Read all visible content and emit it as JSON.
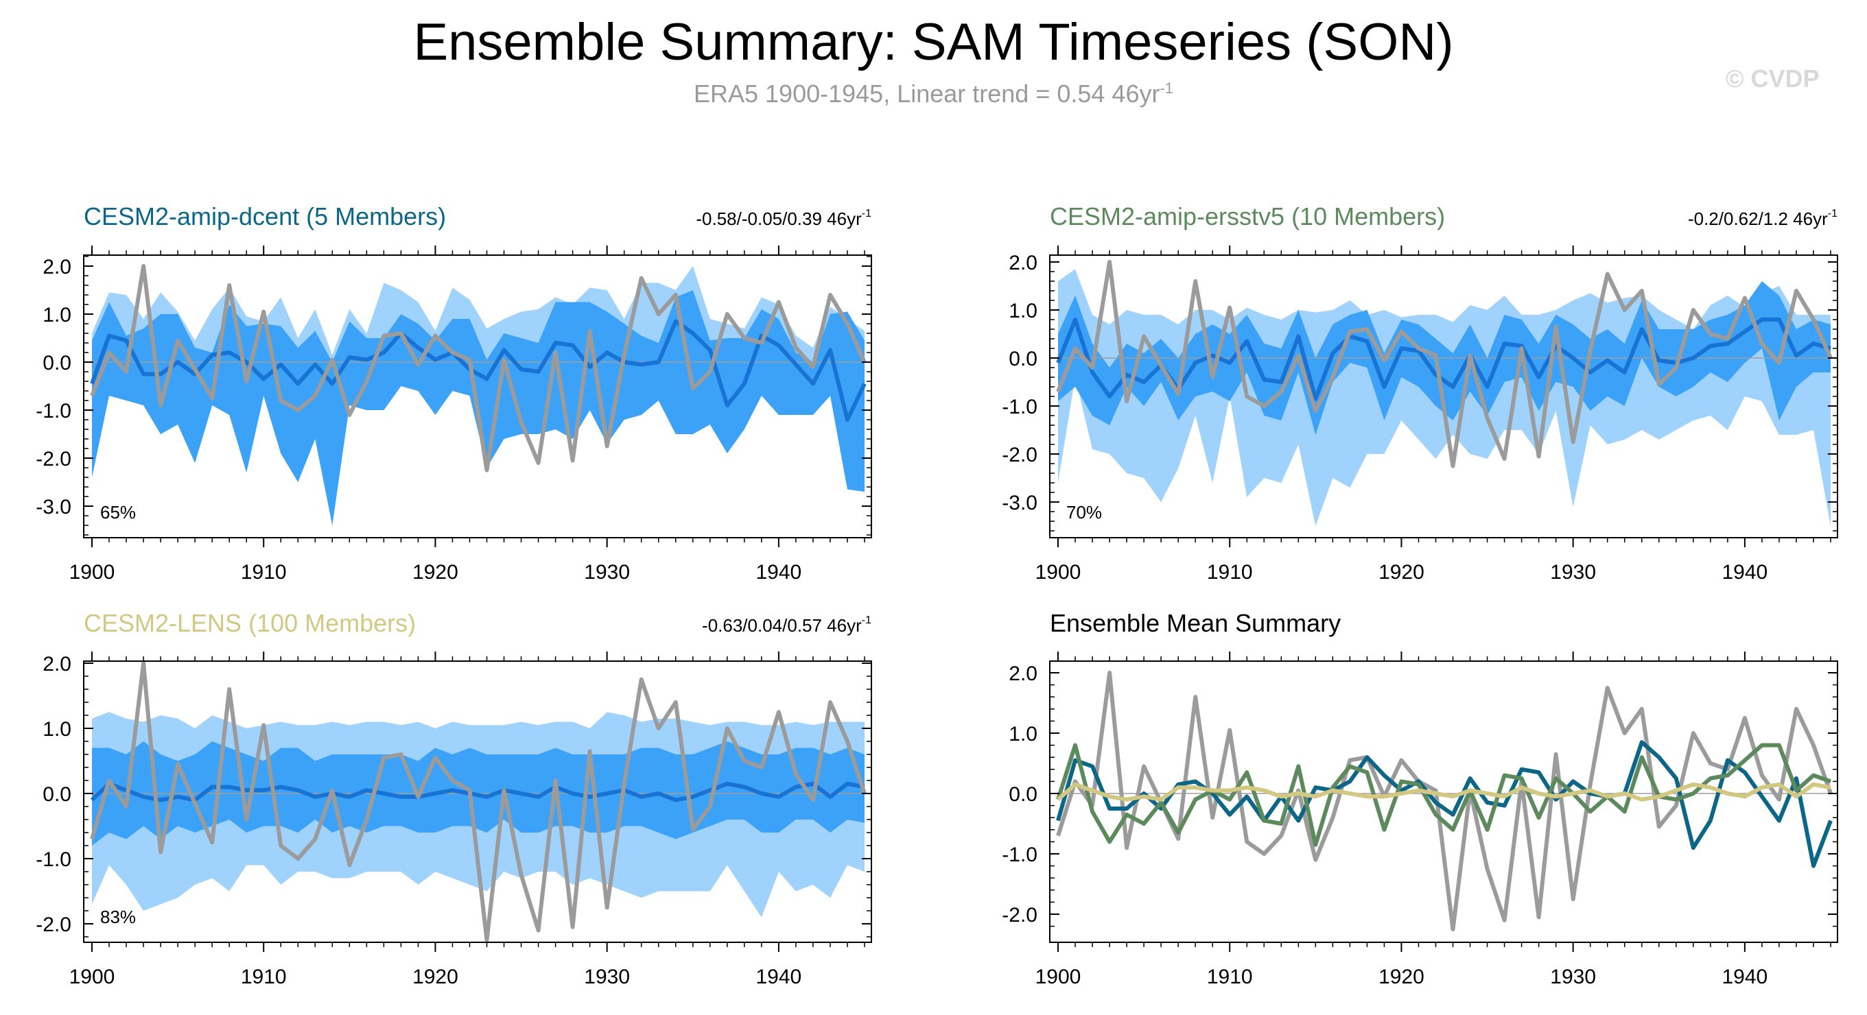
{
  "title": "Ensemble Summary: SAM Timeseries (SON)",
  "subtitle": {
    "main": "ERA5 1900-1945, Linear trend = 0.54 46yr",
    "sup": "-1"
  },
  "watermark": "© CVDP",
  "colors": {
    "spread_light": "#9fd2fc",
    "spread_dark": "#3ba2f8",
    "ens_mean": "#1873d4",
    "obs": "#9b9b9b",
    "zero_line": "#9e9e9e",
    "dcent": "#0b6688",
    "ersstv5": "#5c8a5c",
    "lens": "#d2c882"
  },
  "chart_data": [
    {
      "type": "line",
      "id": "dcent",
      "title": "CESM2-amip-dcent (5 Members)",
      "title_color": "#0b6688",
      "trend_text": "-0.58/-0.05/0.39 46yr",
      "trend_sup": "-1",
      "percent_label": "65%",
      "x_start": 1900,
      "xticks": [
        "1900",
        "1910",
        "1920",
        "1930",
        "1940"
      ],
      "yticks": [
        "2.0",
        "1.0",
        "0.0",
        "-1.0",
        "-2.0",
        "-3.0"
      ],
      "ytick_values": [
        2,
        1,
        0,
        -1,
        -2,
        -3
      ],
      "ylim": [
        -3.6,
        2.2
      ],
      "mean": [
        -0.45,
        0.55,
        0.45,
        -0.25,
        -0.25,
        0.0,
        -0.25,
        0.15,
        0.2,
        0.0,
        -0.35,
        -0.05,
        -0.45,
        -0.05,
        -0.45,
        0.1,
        0.05,
        0.2,
        0.6,
        0.3,
        0.05,
        0.2,
        -0.15,
        -0.35,
        0.25,
        -0.15,
        -0.2,
        0.4,
        0.35,
        -0.1,
        0.2,
        0.0,
        -0.05,
        0.0,
        0.85,
        0.6,
        0.25,
        -0.9,
        -0.45,
        0.55,
        0.35,
        -0.05,
        -0.45,
        0.25,
        -1.2,
        -0.45
      ],
      "low": [
        -2.4,
        -0.7,
        -0.8,
        -0.9,
        -1.5,
        -1.3,
        -2.1,
        -0.9,
        -1.1,
        -2.3,
        -0.7,
        -1.9,
        -2.5,
        -1.6,
        -3.4,
        -0.9,
        -1.0,
        -1.0,
        -0.5,
        -0.6,
        -1.1,
        -0.6,
        -0.7,
        -2.2,
        -1.6,
        -1.5,
        -1.5,
        -1.4,
        -1.6,
        -1.0,
        -1.7,
        -1.2,
        -1.1,
        -0.8,
        -1.5,
        -1.5,
        -1.3,
        -1.9,
        -1.4,
        -0.7,
        -1.1,
        -1.1,
        -1.1,
        -0.7,
        -2.65,
        -2.7
      ],
      "high": [
        0.45,
        1.25,
        0.55,
        0.7,
        1.0,
        1.0,
        0.3,
        0.2,
        1.2,
        0.75,
        0.8,
        0.75,
        0.3,
        0.65,
        0.0,
        0.85,
        0.5,
        0.5,
        1.0,
        0.8,
        0.45,
        0.9,
        0.9,
        0.05,
        0.6,
        0.5,
        0.4,
        1.25,
        1.25,
        1.25,
        1.05,
        0.8,
        0.55,
        0.4,
        1.35,
        1.5,
        0.45,
        0.5,
        0.5,
        1.1,
        0.9,
        0.2,
        0.0,
        1.0,
        1.05,
        0.45
      ],
      "low_outer": [
        -2.4,
        -0.7,
        -0.8,
        -0.9,
        -1.5,
        -1.3,
        -2.1,
        -0.9,
        -1.1,
        -2.3,
        -0.7,
        -1.9,
        -2.5,
        -1.6,
        -3.4,
        -0.9,
        -1.0,
        -1.0,
        -0.5,
        -0.6,
        -1.1,
        -0.6,
        -0.7,
        -2.2,
        -1.6,
        -1.5,
        -1.5,
        -1.4,
        -1.6,
        -1.0,
        -1.7,
        -1.2,
        -1.1,
        -0.8,
        -1.5,
        -1.5,
        -1.3,
        -1.9,
        -1.4,
        -0.7,
        -1.1,
        -1.1,
        -1.1,
        -0.7,
        -2.65,
        -2.7
      ],
      "high_outer": [
        0.6,
        1.45,
        1.4,
        0.9,
        1.45,
        1.05,
        0.45,
        1.1,
        1.55,
        0.95,
        0.85,
        1.35,
        0.5,
        1.1,
        0.15,
        1.1,
        0.6,
        1.65,
        1.5,
        1.25,
        0.65,
        1.55,
        1.3,
        0.7,
        0.9,
        1.05,
        1.1,
        1.35,
        1.2,
        1.55,
        1.5,
        0.9,
        1.65,
        1.65,
        1.5,
        2.0,
        0.9,
        0.8,
        0.7,
        1.35,
        1.2,
        0.55,
        0.3,
        1.15,
        0.9,
        0.65
      ],
      "obs": [
        -0.7,
        0.2,
        -0.2,
        2.0,
        -0.9,
        0.45,
        -0.15,
        -0.75,
        1.6,
        -0.4,
        1.05,
        -0.8,
        -1.0,
        -0.7,
        0.05,
        -1.1,
        -0.4,
        0.55,
        0.6,
        -0.05,
        0.55,
        0.2,
        0.05,
        -2.25,
        0.05,
        -1.25,
        -2.1,
        0.2,
        -2.05,
        0.65,
        -1.75,
        0.15,
        1.75,
        1.0,
        1.4,
        -0.55,
        -0.2,
        1.0,
        0.5,
        0.4,
        1.25,
        0.3,
        -0.1,
        1.4,
        0.8,
        0.0
      ]
    },
    {
      "type": "line",
      "id": "ersstv5",
      "title": "CESM2-amip-ersstv5 (10 Members)",
      "title_color": "#5c8a5c",
      "trend_text": "-0.2/0.62/1.2 46yr",
      "trend_sup": "-1",
      "percent_label": "70%",
      "x_start": 1900,
      "xticks": [
        "1900",
        "1910",
        "1920",
        "1930",
        "1940"
      ],
      "yticks": [
        "2.0",
        "1.0",
        "0.0",
        "-1.0",
        "-2.0",
        "-3.0"
      ],
      "ytick_values": [
        2,
        1,
        0,
        -1,
        -2,
        -3
      ],
      "ylim": [
        -3.6,
        2.2
      ],
      "mean": [
        -0.1,
        0.8,
        -0.3,
        -0.8,
        -0.35,
        -0.5,
        -0.15,
        -0.65,
        -0.1,
        0.05,
        -0.1,
        0.35,
        -0.45,
        -0.5,
        0.45,
        -0.85,
        0.1,
        0.45,
        0.35,
        -0.6,
        0.2,
        0.15,
        -0.35,
        -0.6,
        0.05,
        -0.6,
        0.3,
        0.25,
        -0.4,
        0.25,
        0.0,
        -0.3,
        -0.05,
        -0.3,
        0.6,
        -0.05,
        -0.1,
        0.0,
        0.25,
        0.3,
        0.55,
        0.8,
        0.8,
        0.05,
        0.3,
        0.2
      ],
      "low": [
        -0.9,
        -0.6,
        -1.2,
        -1.4,
        -0.6,
        -1.0,
        -0.5,
        -1.3,
        -0.8,
        -0.7,
        -0.9,
        -0.3,
        -1.2,
        -1.3,
        -0.3,
        -1.6,
        -0.5,
        -0.1,
        -0.2,
        -1.3,
        -0.4,
        -0.6,
        -1.0,
        -1.3,
        -0.7,
        -1.2,
        -0.5,
        -0.4,
        -1.1,
        -0.5,
        -0.6,
        -1.1,
        -0.8,
        -1.0,
        0.0,
        -0.6,
        -0.8,
        -0.6,
        -0.3,
        -0.5,
        -0.1,
        0.2,
        -1.3,
        -0.6,
        -0.3,
        -0.3
      ],
      "high": [
        0.5,
        1.3,
        0.3,
        -0.2,
        0.3,
        0.1,
        0.4,
        0.0,
        0.5,
        0.7,
        0.5,
        0.9,
        0.3,
        0.2,
        1.0,
        0.0,
        0.7,
        0.9,
        1.0,
        0.1,
        0.8,
        0.7,
        0.4,
        0.1,
        0.7,
        0.0,
        0.9,
        0.8,
        0.3,
        0.9,
        0.7,
        0.4,
        0.6,
        0.3,
        1.2,
        0.6,
        0.6,
        0.6,
        0.8,
        0.9,
        1.1,
        1.6,
        1.3,
        0.6,
        0.8,
        0.7
      ],
      "low_outer": [
        -2.6,
        -0.4,
        -1.9,
        -2.0,
        -2.4,
        -2.5,
        -3.0,
        -2.3,
        -1.2,
        -2.6,
        -0.8,
        -2.9,
        -2.5,
        -2.6,
        -1.8,
        -3.5,
        -2.5,
        -2.7,
        -2.0,
        -2.0,
        -1.3,
        -1.7,
        -2.1,
        -1.6,
        -2.0,
        -2.1,
        -1.5,
        -1.5,
        -2.0,
        -1.1,
        -3.1,
        -1.4,
        -1.8,
        -1.7,
        -1.5,
        -1.7,
        -1.5,
        -1.3,
        -1.2,
        -1.5,
        -0.8,
        -0.9,
        -1.6,
        -1.6,
        -1.5,
        -3.5
      ],
      "high_outer": [
        1.6,
        1.85,
        0.9,
        0.7,
        1.0,
        0.9,
        0.9,
        0.7,
        1.0,
        1.0,
        0.8,
        1.05,
        0.9,
        0.8,
        1.0,
        0.95,
        1.0,
        1.2,
        0.9,
        1.0,
        0.85,
        0.9,
        0.9,
        0.75,
        1.1,
        1.0,
        1.3,
        0.9,
        0.9,
        1.0,
        1.2,
        1.35,
        1.15,
        1.25,
        1.3,
        1.0,
        0.8,
        0.6,
        1.1,
        1.3,
        1.05,
        1.35,
        1.5,
        0.9,
        0.9,
        0.9
      ],
      "obs": [
        -0.7,
        0.2,
        -0.2,
        2.0,
        -0.9,
        0.45,
        -0.15,
        -0.75,
        1.6,
        -0.4,
        1.05,
        -0.8,
        -1.0,
        -0.7,
        0.05,
        -1.1,
        -0.4,
        0.55,
        0.6,
        -0.05,
        0.55,
        0.2,
        0.05,
        -2.25,
        0.05,
        -1.25,
        -2.1,
        0.2,
        -2.05,
        0.65,
        -1.75,
        0.15,
        1.75,
        1.0,
        1.4,
        -0.55,
        -0.2,
        1.0,
        0.5,
        0.4,
        1.25,
        0.3,
        -0.1,
        1.4,
        0.8,
        0.0
      ]
    },
    {
      "type": "line",
      "id": "lens",
      "title": "CESM2-LENS (100 Members)",
      "title_color": "#d2c882",
      "trend_text": "-0.63/0.04/0.57 46yr",
      "trend_sup": "-1",
      "percent_label": "83%",
      "x_start": 1900,
      "xticks": [
        "1900",
        "1910",
        "1920",
        "1930",
        "1940"
      ],
      "yticks": [
        "2.0",
        "1.0",
        "0.0",
        "-1.0",
        "-2.0"
      ],
      "ytick_values": [
        2,
        1,
        0,
        -1,
        -2
      ],
      "ylim": [
        -2.3,
        2.1
      ],
      "mean": [
        -0.1,
        0.15,
        0.05,
        -0.05,
        -0.1,
        -0.05,
        -0.1,
        0.1,
        0.1,
        0.05,
        0.05,
        0.1,
        0.05,
        -0.05,
        0.0,
        -0.05,
        0.05,
        0.0,
        -0.05,
        -0.05,
        0.0,
        0.05,
        0.0,
        -0.05,
        0.05,
        0.0,
        -0.05,
        0.1,
        0.0,
        -0.05,
        0.0,
        0.05,
        -0.05,
        0.0,
        -0.1,
        -0.05,
        0.05,
        0.15,
        0.1,
        0.0,
        -0.05,
        0.1,
        0.15,
        -0.05,
        0.15,
        0.1
      ],
      "low": [
        -0.8,
        -0.6,
        -0.7,
        -0.5,
        -0.7,
        -0.5,
        -0.6,
        -0.5,
        -0.4,
        -0.6,
        -0.5,
        -0.5,
        -0.6,
        -0.4,
        -0.6,
        -0.5,
        -0.6,
        -0.5,
        -0.5,
        -0.6,
        -0.6,
        -0.5,
        -0.5,
        -0.6,
        -0.4,
        -0.6,
        -0.6,
        -0.5,
        -0.5,
        -0.6,
        -0.6,
        -0.5,
        -0.5,
        -0.6,
        -0.7,
        -0.6,
        -0.5,
        -0.4,
        -0.4,
        -0.6,
        -0.6,
        -0.4,
        -0.4,
        -0.6,
        -0.4,
        -0.45
      ],
      "high": [
        0.7,
        0.7,
        0.6,
        0.8,
        0.6,
        0.5,
        0.6,
        0.8,
        0.7,
        0.6,
        0.5,
        0.7,
        0.7,
        0.5,
        0.6,
        0.6,
        0.6,
        0.6,
        0.6,
        0.5,
        0.7,
        0.6,
        0.7,
        0.6,
        0.6,
        0.6,
        0.6,
        0.7,
        0.6,
        0.6,
        0.6,
        0.6,
        0.7,
        0.7,
        0.6,
        0.6,
        0.7,
        0.8,
        0.7,
        0.6,
        0.6,
        0.7,
        0.7,
        0.6,
        0.7,
        0.6
      ],
      "low_outer": [
        -1.7,
        -1.1,
        -1.4,
        -1.8,
        -1.7,
        -1.6,
        -1.4,
        -1.3,
        -1.5,
        -1.1,
        -1.1,
        -1.4,
        -1.2,
        -1.2,
        -1.3,
        -1.3,
        -1.2,
        -1.2,
        -1.2,
        -1.4,
        -1.2,
        -1.3,
        -1.4,
        -1.5,
        -1.2,
        -1.3,
        -1.2,
        -1.2,
        -1.4,
        -1.3,
        -1.4,
        -1.5,
        -1.6,
        -1.5,
        -1.5,
        -1.5,
        -1.5,
        -1.1,
        -1.5,
        -1.9,
        -1.2,
        -1.5,
        -1.4,
        -1.6,
        -1.1,
        -1.2
      ],
      "high_outer": [
        1.15,
        1.25,
        1.15,
        1.1,
        1.2,
        1.15,
        1.0,
        1.2,
        1.1,
        1.0,
        1.05,
        1.1,
        1.05,
        1.05,
        1.1,
        1.05,
        1.1,
        1.1,
        1.05,
        1.1,
        1.0,
        1.1,
        1.05,
        1.05,
        1.05,
        1.1,
        1.05,
        1.1,
        1.1,
        1.0,
        1.25,
        1.2,
        1.1,
        1.15,
        1.15,
        1.1,
        1.05,
        1.1,
        1.1,
        1.05,
        1.05,
        1.1,
        1.05,
        1.1,
        1.1,
        1.1
      ],
      "obs": [
        -0.7,
        0.2,
        -0.2,
        2.0,
        -0.9,
        0.45,
        -0.15,
        -0.75,
        1.6,
        -0.4,
        1.05,
        -0.8,
        -1.0,
        -0.7,
        0.05,
        -1.1,
        -0.4,
        0.55,
        0.6,
        -0.05,
        0.55,
        0.2,
        0.05,
        -2.25,
        0.05,
        -1.25,
        -2.1,
        0.2,
        -2.05,
        0.65,
        -1.75,
        0.15,
        1.75,
        1.0,
        1.4,
        -0.55,
        -0.2,
        1.0,
        0.5,
        0.4,
        1.25,
        0.3,
        -0.1,
        1.4,
        0.8,
        0.0
      ]
    },
    {
      "type": "line",
      "id": "summary",
      "title": "Ensemble Mean Summary",
      "title_color": "#000000",
      "x_start": 1900,
      "xticks": [
        "1900",
        "1910",
        "1920",
        "1930",
        "1940"
      ],
      "yticks": [
        "2.0",
        "1.0",
        "0.0",
        "-1.0",
        "-2.0"
      ],
      "ytick_values": [
        2,
        1,
        0,
        -1,
        -2
      ],
      "ylim": [
        -2.3,
        2.1
      ],
      "series": [
        {
          "name": "ERA5",
          "color": "#9b9b9b",
          "values": [
            -0.7,
            0.2,
            -0.2,
            2.0,
            -0.9,
            0.45,
            -0.15,
            -0.75,
            1.6,
            -0.4,
            1.05,
            -0.8,
            -1.0,
            -0.7,
            0.05,
            -1.1,
            -0.4,
            0.55,
            0.6,
            -0.05,
            0.55,
            0.2,
            0.05,
            -2.25,
            0.05,
            -1.25,
            -2.1,
            0.2,
            -2.05,
            0.65,
            -1.75,
            0.15,
            1.75,
            1.0,
            1.4,
            -0.55,
            -0.2,
            1.0,
            0.5,
            0.4,
            1.25,
            0.3,
            -0.1,
            1.4,
            0.8,
            0.0
          ]
        },
        {
          "name": "CESM2-amip-dcent",
          "color": "#0b6688",
          "values": [
            -0.45,
            0.55,
            0.45,
            -0.25,
            -0.25,
            0.0,
            -0.25,
            0.15,
            0.2,
            0.0,
            -0.35,
            -0.05,
            -0.45,
            -0.05,
            -0.45,
            0.1,
            0.05,
            0.2,
            0.6,
            0.3,
            0.05,
            0.2,
            -0.15,
            -0.35,
            0.25,
            -0.15,
            -0.2,
            0.4,
            0.35,
            -0.1,
            0.2,
            0.0,
            -0.05,
            0.0,
            0.85,
            0.6,
            0.25,
            -0.9,
            -0.45,
            0.55,
            0.35,
            -0.05,
            -0.45,
            0.25,
            -1.2,
            -0.45
          ]
        },
        {
          "name": "CESM2-amip-ersstv5",
          "color": "#5c8a5c",
          "values": [
            -0.1,
            0.8,
            -0.3,
            -0.8,
            -0.35,
            -0.5,
            -0.15,
            -0.65,
            -0.1,
            0.05,
            -0.1,
            0.35,
            -0.45,
            -0.5,
            0.45,
            -0.85,
            0.1,
            0.45,
            0.35,
            -0.6,
            0.2,
            0.15,
            -0.35,
            -0.6,
            0.05,
            -0.6,
            0.3,
            0.25,
            -0.4,
            0.25,
            0.0,
            -0.3,
            -0.05,
            -0.3,
            0.6,
            -0.05,
            -0.1,
            0.0,
            0.25,
            0.3,
            0.55,
            0.8,
            0.8,
            0.05,
            0.3,
            0.2
          ]
        },
        {
          "name": "CESM2-LENS",
          "color": "#d2c882",
          "values": [
            -0.1,
            0.15,
            0.05,
            -0.05,
            -0.1,
            -0.05,
            -0.1,
            0.1,
            0.1,
            0.05,
            0.05,
            0.1,
            0.05,
            -0.05,
            0.0,
            -0.05,
            0.05,
            0.0,
            -0.05,
            -0.05,
            0.0,
            0.05,
            0.0,
            -0.05,
            0.05,
            0.0,
            -0.05,
            0.1,
            0.0,
            -0.05,
            0.0,
            0.05,
            -0.05,
            0.0,
            -0.1,
            -0.05,
            0.05,
            0.15,
            0.1,
            0.0,
            -0.05,
            0.1,
            0.15,
            -0.05,
            0.15,
            0.1
          ]
        }
      ]
    }
  ]
}
